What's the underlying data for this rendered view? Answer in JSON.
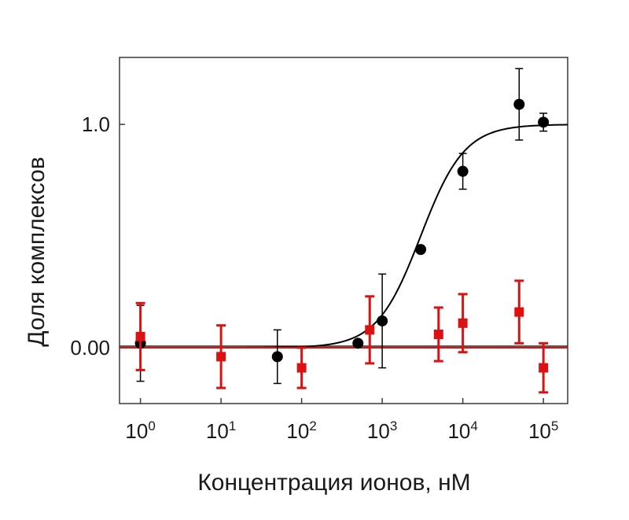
{
  "chart_data": {
    "type": "scatter",
    "xscale": "log",
    "xlabel": "Концентрация ионов, нМ",
    "ylabel": "Доля комплексов",
    "xlim": [
      0.55,
      200000
    ],
    "ylim": [
      -0.25,
      1.3
    ],
    "x_ticks": [
      {
        "base": "10",
        "exp": "0",
        "value": 1
      },
      {
        "base": "10",
        "exp": "1",
        "value": 10
      },
      {
        "base": "10",
        "exp": "2",
        "value": 100
      },
      {
        "base": "10",
        "exp": "3",
        "value": 1000
      },
      {
        "base": "10",
        "exp": "4",
        "value": 10000
      },
      {
        "base": "10",
        "exp": "5",
        "value": 100000
      }
    ],
    "y_ticks": [
      {
        "label": "0.00",
        "value": 0
      },
      {
        "label": "1.0",
        "value": 1
      }
    ],
    "series": [
      {
        "color": "#000000",
        "marker": "circle",
        "points": [
          {
            "x": 1,
            "y": 0.02,
            "err": 0.17
          },
          {
            "x": 50,
            "y": -0.04,
            "err": 0.12
          },
          {
            "x": 500,
            "y": 0.02,
            "err": 0.0
          },
          {
            "x": 1000,
            "y": 0.12,
            "err": 0.21
          },
          {
            "x": 3000,
            "y": 0.44,
            "err": 0.0
          },
          {
            "x": 10000,
            "y": 0.79,
            "err": 0.08
          },
          {
            "x": 50000,
            "y": 1.09,
            "err": 0.16
          },
          {
            "x": 100000,
            "y": 1.01,
            "err": 0.04
          }
        ],
        "fit": {
          "type": "sigmoid",
          "bottom": 0,
          "top": 1,
          "ec50": 3000,
          "hill": 1.6
        }
      },
      {
        "color": "#dd1111",
        "marker": "square",
        "points": [
          {
            "x": 1,
            "y": 0.05,
            "err": 0.15
          },
          {
            "x": 10,
            "y": -0.04,
            "err": 0.14
          },
          {
            "x": 100,
            "y": -0.09,
            "err": 0.09
          },
          {
            "x": 700,
            "y": 0.08,
            "err": 0.15
          },
          {
            "x": 5000,
            "y": 0.06,
            "err": 0.12
          },
          {
            "x": 10000,
            "y": 0.11,
            "err": 0.13
          },
          {
            "x": 50000,
            "y": 0.16,
            "err": 0.14
          },
          {
            "x": 100000,
            "y": -0.09,
            "err": 0.11
          }
        ],
        "fit": {
          "type": "linear",
          "y": 0
        }
      }
    ]
  }
}
